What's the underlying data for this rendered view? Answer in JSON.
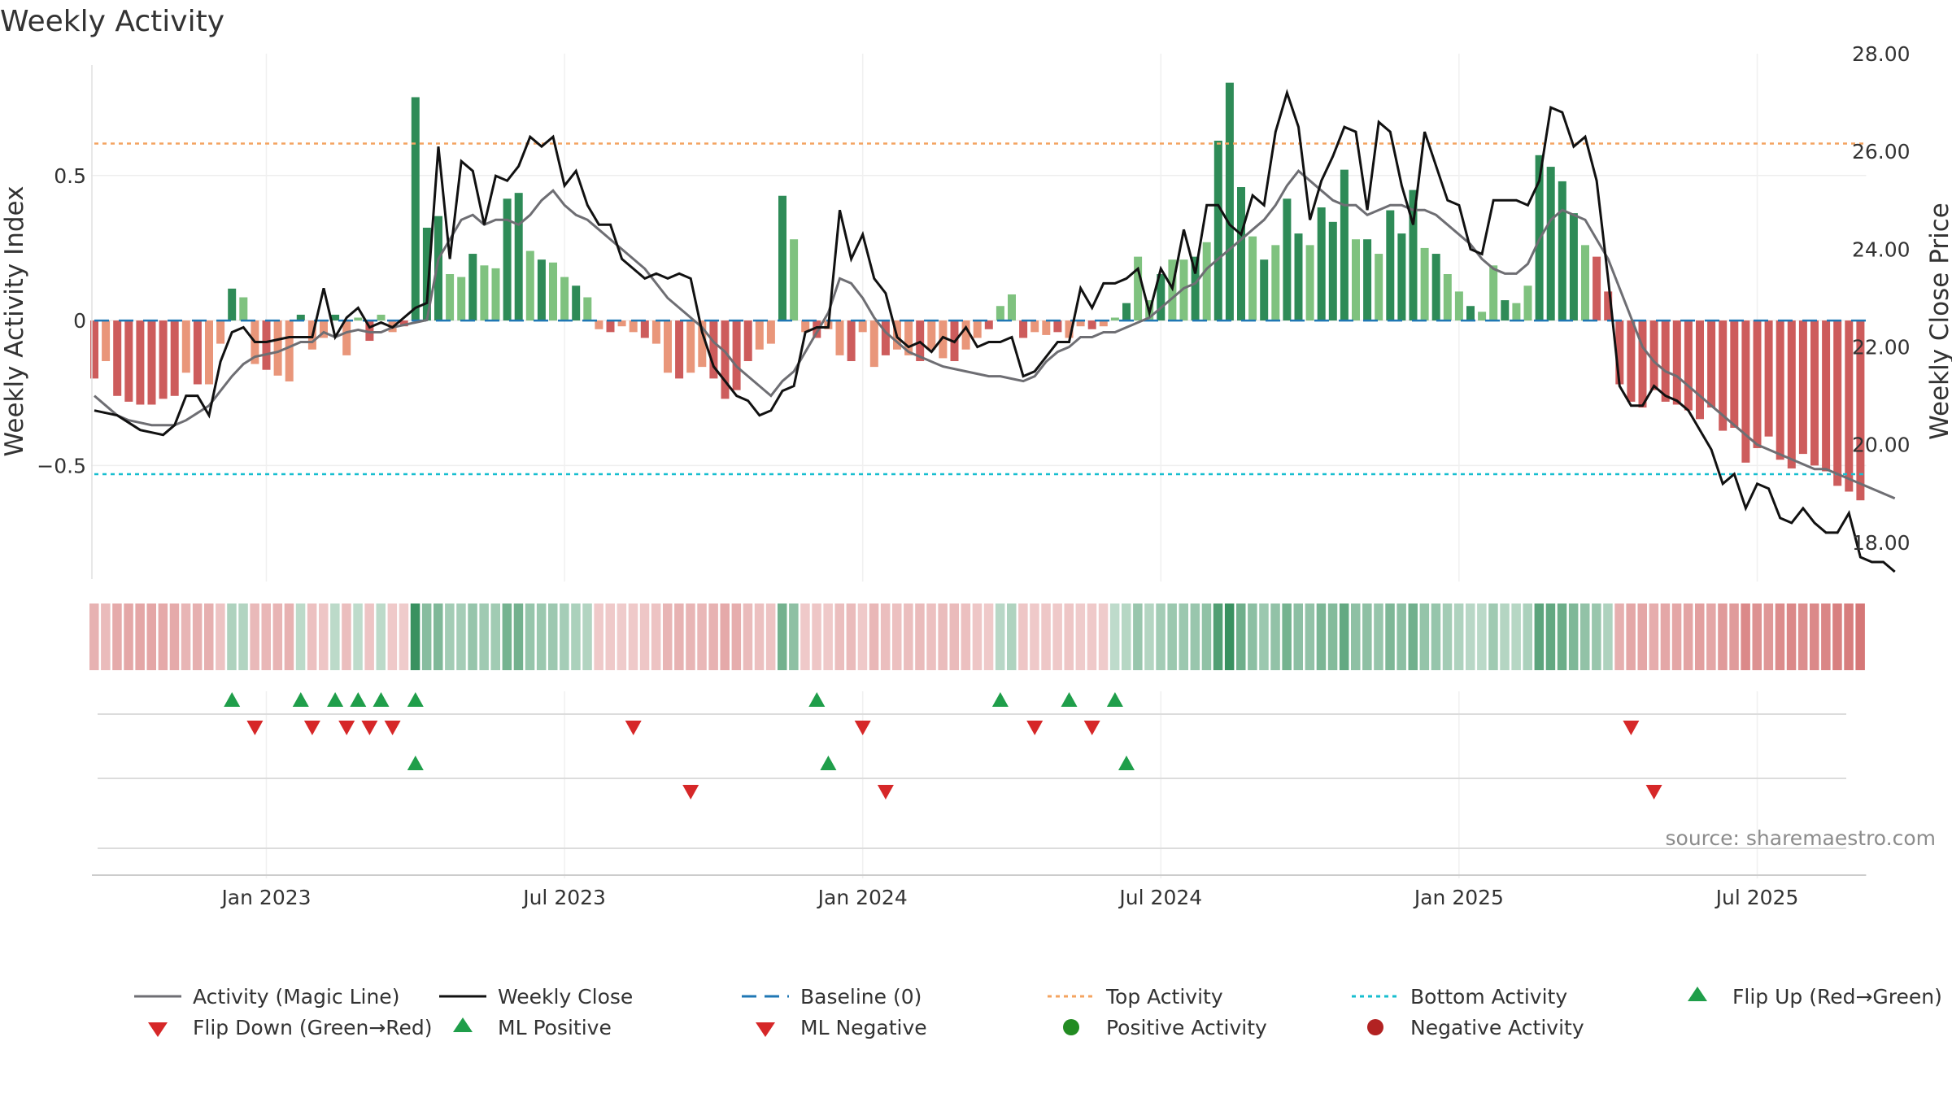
{
  "chart_data": {
    "type": "bar+line",
    "title": "Weekly Activity",
    "ylabel_left": "Weekly Activity Index",
    "ylabel_right": "Weekly Close Price",
    "left_ylim": [
      -0.9,
      0.92
    ],
    "right_ylim": [
      17.2,
      28.0
    ],
    "left_yticks": [
      {
        "v": 0.5,
        "label": "0.5"
      },
      {
        "v": 0,
        "label": "0"
      },
      {
        "v": -0.5,
        "label": "−0.5"
      }
    ],
    "right_yticks": [
      {
        "v": 28,
        "label": "28.00"
      },
      {
        "v": 26,
        "label": "26.00"
      },
      {
        "v": 24,
        "label": "24.00"
      },
      {
        "v": 22,
        "label": "22.00"
      },
      {
        "v": 20,
        "label": "20.00"
      },
      {
        "v": 18,
        "label": "18.00"
      }
    ],
    "xticks": [
      {
        "i": 15,
        "label": "Jan 2023"
      },
      {
        "i": 41,
        "label": "Jul 2023"
      },
      {
        "i": 67,
        "label": "Jan 2024"
      },
      {
        "i": 93,
        "label": "Jul 2024"
      },
      {
        "i": 119,
        "label": "Jan 2025"
      },
      {
        "i": 145,
        "label": "Jul 2025"
      }
    ],
    "top_activity": 0.61,
    "bottom_activity": -0.53,
    "activity": [
      -0.2,
      -0.14,
      -0.26,
      -0.28,
      -0.29,
      -0.29,
      -0.27,
      -0.26,
      -0.18,
      -0.22,
      -0.22,
      -0.08,
      0.11,
      0.08,
      -0.15,
      -0.17,
      -0.19,
      -0.21,
      0.02,
      -0.1,
      -0.06,
      0.02,
      -0.12,
      0.01,
      -0.07,
      0.02,
      -0.04,
      -0.02,
      0.77,
      0.32,
      0.36,
      0.16,
      0.15,
      0.23,
      0.19,
      0.18,
      0.42,
      0.44,
      0.24,
      0.21,
      0.2,
      0.15,
      0.12,
      0.08,
      -0.03,
      -0.04,
      -0.02,
      -0.04,
      -0.06,
      -0.08,
      -0.18,
      -0.2,
      -0.18,
      -0.16,
      -0.2,
      -0.27,
      -0.24,
      -0.14,
      -0.1,
      -0.08,
      0.43,
      0.28,
      -0.04,
      -0.06,
      -0.03,
      -0.12,
      -0.14,
      -0.04,
      -0.16,
      -0.12,
      -0.1,
      -0.12,
      -0.14,
      -0.1,
      -0.13,
      -0.14,
      -0.1,
      -0.06,
      -0.03,
      0.05,
      0.09,
      -0.06,
      -0.04,
      -0.05,
      -0.04,
      -0.06,
      -0.02,
      -0.03,
      -0.02,
      0.01,
      0.06,
      0.22,
      0.07,
      0.16,
      0.21,
      0.21,
      0.22,
      0.27,
      0.62,
      0.82,
      0.46,
      0.29,
      0.21,
      0.26,
      0.42,
      0.3,
      0.26,
      0.39,
      0.34,
      0.52,
      0.28,
      0.28,
      0.23,
      0.38,
      0.3,
      0.45,
      0.25,
      0.23,
      0.16,
      0.1,
      0.05,
      0.03,
      0.19,
      0.07,
      0.06,
      0.12,
      0.57,
      0.53,
      0.48,
      0.37,
      0.26,
      0.22,
      0.1,
      -0.22,
      -0.28,
      -0.3,
      -0.24,
      -0.28,
      -0.29,
      -0.31,
      -0.34,
      -0.3,
      -0.38,
      -0.37,
      -0.49,
      -0.44,
      -0.4,
      -0.48,
      -0.51,
      -0.46,
      -0.5,
      -0.52,
      -0.57,
      -0.59,
      -0.62
    ],
    "weekly_close": [
      20.7,
      20.65,
      20.6,
      20.45,
      20.3,
      20.25,
      20.2,
      20.4,
      21.0,
      21.0,
      20.6,
      21.7,
      22.3,
      22.4,
      22.1,
      22.1,
      22.15,
      22.2,
      22.2,
      22.2,
      23.2,
      22.2,
      22.6,
      22.8,
      22.4,
      22.5,
      22.4,
      22.6,
      22.8,
      22.9,
      26.1,
      23.8,
      25.8,
      25.6,
      24.5,
      25.5,
      25.4,
      25.7,
      26.3,
      26.1,
      26.3,
      25.3,
      25.6,
      24.9,
      24.5,
      24.5,
      23.8,
      23.6,
      23.4,
      23.5,
      23.4,
      23.5,
      23.4,
      22.3,
      21.6,
      21.3,
      21.0,
      20.9,
      20.6,
      20.7,
      21.1,
      21.2,
      22.3,
      22.4,
      22.4,
      24.8,
      23.8,
      24.3,
      23.4,
      23.1,
      22.2,
      22.0,
      22.1,
      21.9,
      22.2,
      22.1,
      22.4,
      22.0,
      22.1,
      22.1,
      22.2,
      21.4,
      21.5,
      21.8,
      22.1,
      22.1,
      23.2,
      22.8,
      23.3,
      23.3,
      23.4,
      23.6,
      22.7,
      23.6,
      23.2,
      24.4,
      23.5,
      24.9,
      24.9,
      24.5,
      24.3,
      25.1,
      24.9,
      26.4,
      27.2,
      26.5,
      24.6,
      25.4,
      25.9,
      26.5,
      26.4,
      24.8,
      26.6,
      26.4,
      25.3,
      24.5,
      26.4,
      25.7,
      25.0,
      24.9,
      24.0,
      23.9,
      25.0,
      25.0,
      25.0,
      24.9,
      25.4,
      26.9,
      26.8,
      26.1,
      26.3,
      25.4,
      23.4,
      21.2,
      20.8,
      20.8,
      21.2,
      21.0,
      20.9,
      20.7,
      20.3,
      19.9,
      19.2,
      19.4,
      18.7,
      19.2,
      19.1,
      18.5,
      18.4,
      18.7,
      18.4,
      18.2,
      18.2,
      18.6,
      17.7,
      17.6,
      17.6,
      17.4
    ],
    "magic_line": [
      21.0,
      20.8,
      20.6,
      20.5,
      20.45,
      20.4,
      20.4,
      20.4,
      20.5,
      20.65,
      20.8,
      21.1,
      21.4,
      21.65,
      21.8,
      21.85,
      21.9,
      22.0,
      22.1,
      22.1,
      22.3,
      22.2,
      22.3,
      22.35,
      22.3,
      22.3,
      22.4,
      22.45,
      22.5,
      22.55,
      23.8,
      24.2,
      24.6,
      24.7,
      24.5,
      24.6,
      24.6,
      24.5,
      24.7,
      25.0,
      25.2,
      24.9,
      24.7,
      24.6,
      24.4,
      24.2,
      24.0,
      23.8,
      23.6,
      23.3,
      23.0,
      22.8,
      22.6,
      22.4,
      22.1,
      21.9,
      21.6,
      21.4,
      21.2,
      21.0,
      21.3,
      21.5,
      21.9,
      22.3,
      22.7,
      23.4,
      23.3,
      23.0,
      22.6,
      22.3,
      22.1,
      21.9,
      21.8,
      21.7,
      21.6,
      21.55,
      21.5,
      21.45,
      21.4,
      21.4,
      21.35,
      21.3,
      21.4,
      21.7,
      21.9,
      22.0,
      22.2,
      22.2,
      22.3,
      22.3,
      22.4,
      22.5,
      22.6,
      22.8,
      23.0,
      23.2,
      23.3,
      23.6,
      23.8,
      24.0,
      24.2,
      24.4,
      24.6,
      24.9,
      25.3,
      25.6,
      25.4,
      25.2,
      25.0,
      24.9,
      24.9,
      24.7,
      24.8,
      24.9,
      24.9,
      24.8,
      24.8,
      24.7,
      24.5,
      24.3,
      24.1,
      23.8,
      23.6,
      23.5,
      23.5,
      23.7,
      24.2,
      24.6,
      24.8,
      24.7,
      24.6,
      24.2,
      23.8,
      23.2,
      22.6,
      22.0,
      21.7,
      21.5,
      21.4,
      21.2,
      21.0,
      20.8,
      20.6,
      20.4,
      20.2,
      20.0,
      19.9,
      19.8,
      19.7,
      19.6,
      19.5,
      19.5,
      19.4,
      19.3,
      19.2,
      19.1,
      19.0,
      18.9
    ],
    "flip_up_weeks": [
      12,
      18,
      21,
      23,
      25,
      28,
      63,
      79,
      85,
      89
    ],
    "flip_down_weeks": [
      14,
      19,
      22,
      24,
      26,
      47,
      67,
      82,
      87,
      134
    ],
    "ml_positive_weeks": [
      28,
      64,
      90
    ],
    "ml_negative_weeks": [
      52,
      69,
      136
    ],
    "legend": [
      "Activity (Magic Line)",
      "Weekly Close",
      "Baseline (0)",
      "Top Activity",
      "Bottom Activity",
      "Flip Up (Red→Green)",
      "Flip Down (Green→Red)",
      "ML Positive",
      "ML Negative",
      "Positive Activity",
      "Negative Activity"
    ],
    "source": "source: sharemaestro.com"
  },
  "colors": {
    "pos_strong": "#2e8b57",
    "pos_light": "#7fc27f",
    "neg_strong": "#cd5c5c",
    "neg_light": "#e9967a",
    "magic_line": "#6e6e73",
    "close": "#111111",
    "baseline": "#1f77b4",
    "top": "#f4a460",
    "bottom": "#17becf",
    "flip_up": "#1f9e4a",
    "flip_down": "#d62728",
    "pos_dot": "#228b22",
    "neg_dot": "#b22222"
  }
}
